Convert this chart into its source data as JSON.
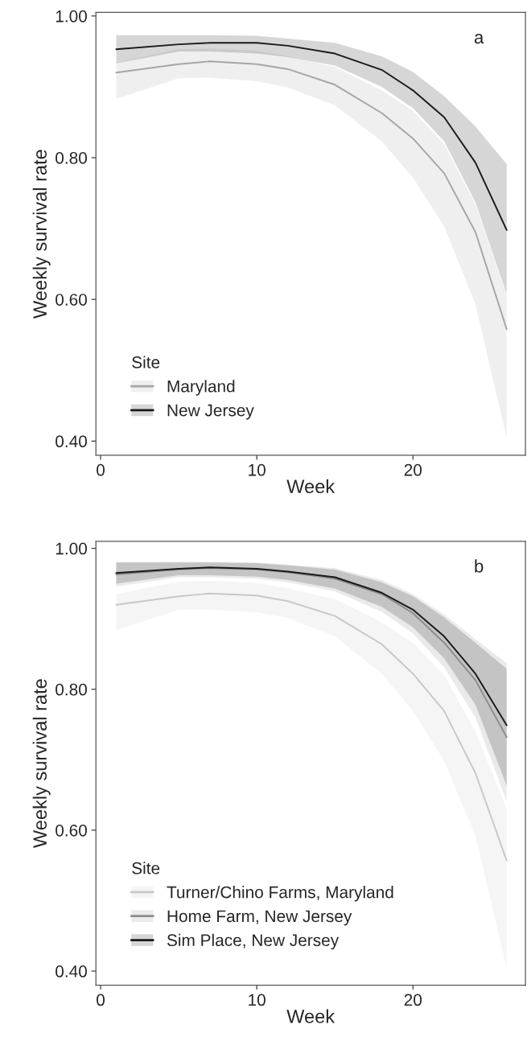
{
  "chart_data": [
    {
      "type": "line",
      "xlabel": "Week",
      "ylabel": "Weekly survival rate",
      "legend_title": "Site",
      "legend": "bottom left",
      "grid": false,
      "annotations": [
        "a"
      ],
      "xlim": [
        -0.3,
        27.2
      ],
      "xticks": [
        0,
        10,
        20
      ],
      "ylim": [
        0.38,
        1.005
      ],
      "yticks": [
        {
          "value": 0.4,
          "label": "0.40"
        },
        {
          "value": 0.6,
          "label": "0.60"
        },
        {
          "value": 0.8,
          "label": "0.80"
        },
        {
          "value": 1.0,
          "label": "1.00"
        }
      ],
      "x": [
        1,
        5,
        7,
        10,
        12,
        15,
        18,
        20,
        22,
        24,
        26
      ],
      "series": [
        {
          "name": "Maryland",
          "color": "#a6a6a6",
          "values": [
            0.92,
            0.932,
            0.936,
            0.932,
            0.925,
            0.903,
            0.863,
            0.827,
            0.778,
            0.695,
            0.558
          ],
          "lower": [
            0.883,
            0.912,
            0.913,
            0.908,
            0.899,
            0.874,
            0.823,
            0.772,
            0.703,
            0.593,
            0.404
          ],
          "upper": [
            0.934,
            0.953,
            0.954,
            0.951,
            0.943,
            0.928,
            0.895,
            0.866,
            0.819,
            0.734,
            0.605
          ]
        },
        {
          "name": "New Jersey",
          "color": "#1a1a1a",
          "values": [
            0.953,
            0.96,
            0.962,
            0.962,
            0.958,
            0.947,
            0.924,
            0.895,
            0.857,
            0.793,
            0.698
          ],
          "lower": [
            0.933,
            0.95,
            0.95,
            0.947,
            0.942,
            0.93,
            0.9,
            0.87,
            0.823,
            0.737,
            0.607
          ],
          "upper": [
            0.973,
            0.973,
            0.973,
            0.972,
            0.968,
            0.962,
            0.943,
            0.921,
            0.887,
            0.844,
            0.791
          ]
        }
      ]
    },
    {
      "type": "line",
      "xlabel": "Week",
      "ylabel": "Weekly survival rate",
      "legend_title": "Site",
      "legend": "bottom left",
      "grid": false,
      "annotations": [
        "b"
      ],
      "xlim": [
        -0.3,
        27.2
      ],
      "xticks": [
        0,
        10,
        20
      ],
      "ylim": [
        0.38,
        1.01
      ],
      "yticks": [
        {
          "value": 0.4,
          "label": "0.40"
        },
        {
          "value": 0.6,
          "label": "0.60"
        },
        {
          "value": 0.8,
          "label": "0.80"
        },
        {
          "value": 1.0,
          "label": "1.00"
        }
      ],
      "x": [
        1,
        5,
        7,
        10,
        12,
        15,
        18,
        20,
        22,
        24,
        26
      ],
      "series": [
        {
          "name": "Turner/Chino Farms, Maryland",
          "color": "#c8c8c8",
          "values": [
            0.92,
            0.932,
            0.936,
            0.933,
            0.925,
            0.904,
            0.864,
            0.822,
            0.769,
            0.681,
            0.557
          ],
          "lower": [
            0.884,
            0.913,
            0.913,
            0.909,
            0.901,
            0.875,
            0.822,
            0.769,
            0.698,
            0.592,
            0.405
          ],
          "upper": [
            0.935,
            0.953,
            0.954,
            0.951,
            0.943,
            0.928,
            0.895,
            0.866,
            0.82,
            0.74,
            0.63
          ]
        },
        {
          "name": "Home Farm, New Jersey",
          "color": "#8c8c8c",
          "values": [
            0.963,
            0.97,
            0.972,
            0.97,
            0.966,
            0.957,
            0.935,
            0.908,
            0.866,
            0.813,
            0.732
          ],
          "lower": [
            0.946,
            0.959,
            0.959,
            0.957,
            0.952,
            0.939,
            0.91,
            0.879,
            0.831,
            0.76,
            0.641
          ],
          "upper": [
            0.981,
            0.981,
            0.981,
            0.98,
            0.977,
            0.972,
            0.955,
            0.935,
            0.906,
            0.871,
            0.837
          ]
        },
        {
          "name": "Sim Place, New Jersey",
          "color": "#1a1a1a",
          "values": [
            0.965,
            0.971,
            0.973,
            0.971,
            0.967,
            0.959,
            0.937,
            0.913,
            0.875,
            0.822,
            0.749
          ],
          "lower": [
            0.95,
            0.962,
            0.962,
            0.96,
            0.955,
            0.943,
            0.917,
            0.888,
            0.844,
            0.778,
            0.663
          ],
          "upper": [
            0.98,
            0.98,
            0.98,
            0.979,
            0.976,
            0.97,
            0.952,
            0.932,
            0.902,
            0.866,
            0.829
          ]
        }
      ]
    }
  ]
}
